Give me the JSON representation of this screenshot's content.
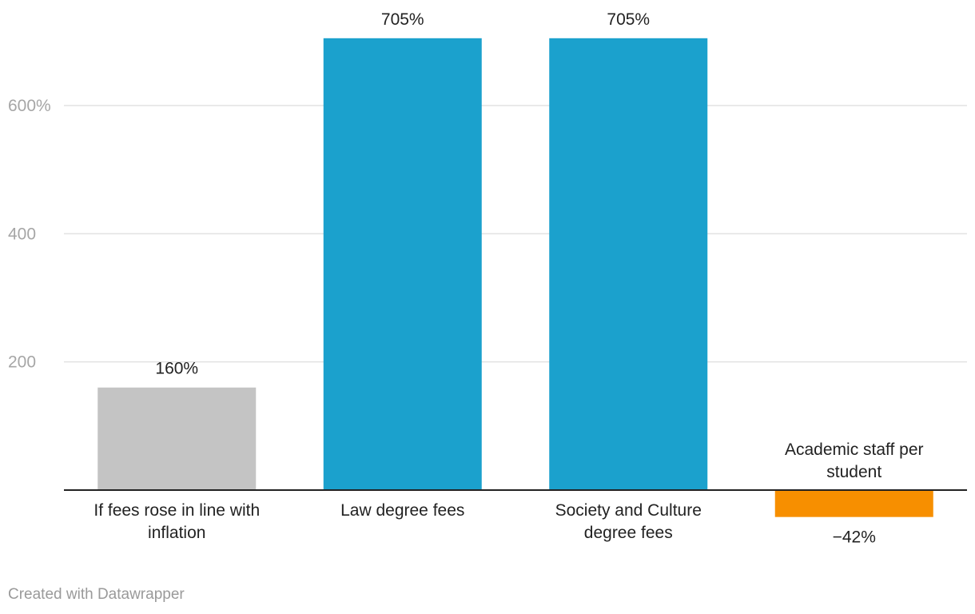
{
  "chart_data": {
    "type": "bar",
    "categories": [
      "If fees rose in line with inflation",
      "Law degree fees",
      "Society and Culture degree fees",
      "Academic staff per student"
    ],
    "values": [
      160,
      705,
      705,
      -42
    ],
    "value_labels": [
      "160%",
      "705%",
      "705%",
      "−42%"
    ],
    "colors": [
      "#c4c4c4",
      "#1ba1cd",
      "#1ba1cd",
      "#f78f00"
    ],
    "yticks": [
      {
        "value": 200,
        "label": "200"
      },
      {
        "value": 400,
        "label": "400"
      },
      {
        "value": 600,
        "label": "600%"
      }
    ],
    "ylim": [
      -42,
      705
    ],
    "grid": true,
    "gridline_color": "#e2e2e2",
    "baseline_color": "#222222",
    "legend": "none"
  },
  "footer": {
    "credit": "Created with Datawrapper"
  }
}
